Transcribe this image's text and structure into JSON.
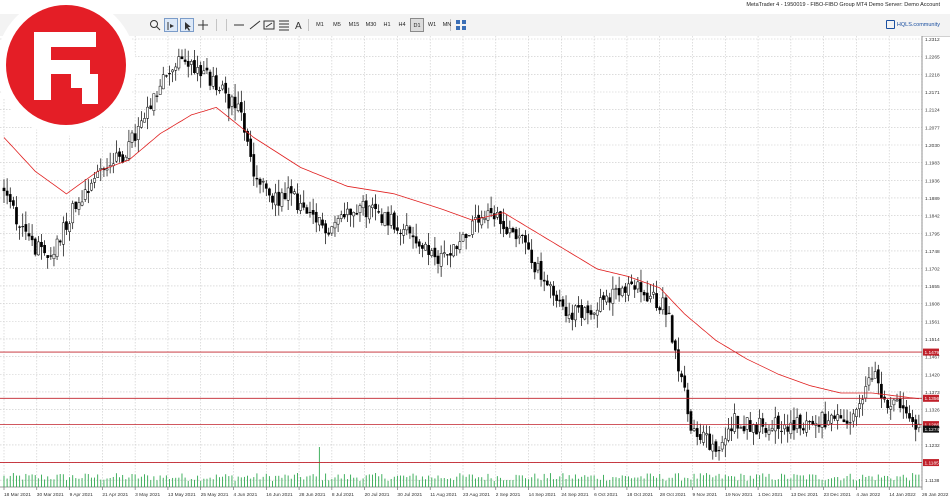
{
  "window": {
    "title": "MetaTrader 4 - 1950019 - FIBO-FIBO Group MT4 Demo Server: Demo Account"
  },
  "toolbar": {
    "timeframes": [
      "M1",
      "M5",
      "M15",
      "M30",
      "H1",
      "H4",
      "D1",
      "W1",
      "MN"
    ],
    "active_timeframe": "D1",
    "community_link": "HQLS.community"
  },
  "colors": {
    "grid": "#c8c8c8",
    "candle": "#000000",
    "moving_average": "#e02020",
    "level_line": "#c0202a",
    "level_label_bg": "#c0202a",
    "current_price_bg": "#111111",
    "logo_red": "#e41e26"
  },
  "chart_data": {
    "type": "candlestick",
    "price_axis_ticks": [
      "1.2312",
      "1.2265",
      "1.2218",
      "1.2171",
      "1.2124",
      "1.2077",
      "1.2030",
      "1.1983",
      "1.1936",
      "1.1889",
      "1.1842",
      "1.1795",
      "1.1748",
      "1.1702",
      "1.1655",
      "1.1608",
      "1.1561",
      "1.1514",
      "1.1467",
      "1.1420",
      "1.1373",
      "1.1326",
      "1.1279",
      "1.1232",
      "1.1185",
      "1.1138"
    ],
    "date_axis_ticks": [
      "18 Mar 2021",
      "30 Mar 2021",
      "9 Apr 2021",
      "21 Apr 2021",
      "3 May 2021",
      "13 May 2021",
      "25 May 2021",
      "4 Jun 2021",
      "16 Jun 2021",
      "28 Jun 2021",
      "8 Jul 2021",
      "20 Jul 2021",
      "30 Jul 2021",
      "11 Aug 2021",
      "23 Aug 2021",
      "2 Sep 2021",
      "14 Sep 2021",
      "24 Sep 2021",
      "6 Oct 2021",
      "18 Oct 2021",
      "28 Oct 2021",
      "9 Nov 2021",
      "19 Nov 2021",
      "1 Dec 2021",
      "13 Dec 2021",
      "23 Dec 2021",
      "4 Jan 2022",
      "14 Jan 2022",
      "26 Jan 2022"
    ],
    "ylim": [
      1.112,
      1.232
    ],
    "horizontal_levels": [
      {
        "value": 1.1479,
        "label": "1.1479"
      },
      {
        "value": 1.1356,
        "label": "1.1356"
      },
      {
        "value": 1.1286,
        "label": "1.1286"
      },
      {
        "value": 1.1185,
        "label": "1.1185"
      }
    ],
    "current_price": {
      "value": 1.1274,
      "label": "1.1274"
    },
    "close_anchors": [
      [
        0,
        1.192
      ],
      [
        6,
        1.18
      ],
      [
        14,
        1.172
      ],
      [
        22,
        1.186
      ],
      [
        30,
        1.196
      ],
      [
        38,
        1.2
      ],
      [
        46,
        1.211
      ],
      [
        52,
        1.222
      ],
      [
        58,
        1.226
      ],
      [
        64,
        1.222
      ],
      [
        70,
        1.217
      ],
      [
        76,
        1.211
      ],
      [
        80,
        1.195
      ],
      [
        86,
        1.188
      ],
      [
        92,
        1.19
      ],
      [
        98,
        1.183
      ],
      [
        104,
        1.181
      ],
      [
        112,
        1.187
      ],
      [
        120,
        1.185
      ],
      [
        126,
        1.182
      ],
      [
        132,
        1.178
      ],
      [
        138,
        1.172
      ],
      [
        144,
        1.176
      ],
      [
        150,
        1.181
      ],
      [
        156,
        1.184
      ],
      [
        160,
        1.182
      ],
      [
        166,
        1.178
      ],
      [
        172,
        1.168
      ],
      [
        178,
        1.16
      ],
      [
        184,
        1.158
      ],
      [
        190,
        1.161
      ],
      [
        196,
        1.163
      ],
      [
        202,
        1.165
      ],
      [
        208,
        1.162
      ],
      [
        212,
        1.16
      ],
      [
        216,
        1.145
      ],
      [
        220,
        1.128
      ],
      [
        224,
        1.126
      ],
      [
        228,
        1.12
      ],
      [
        234,
        1.13
      ],
      [
        240,
        1.128
      ],
      [
        246,
        1.129
      ],
      [
        252,
        1.128
      ],
      [
        258,
        1.129
      ],
      [
        264,
        1.13
      ],
      [
        270,
        1.128
      ],
      [
        274,
        1.133
      ],
      [
        278,
        1.142
      ],
      [
        282,
        1.136
      ],
      [
        286,
        1.133
      ],
      [
        290,
        1.13
      ],
      [
        293,
        1.1274
      ]
    ],
    "ma_anchors": [
      [
        0,
        1.205
      ],
      [
        10,
        1.196
      ],
      [
        20,
        1.19
      ],
      [
        30,
        1.196
      ],
      [
        40,
        1.199
      ],
      [
        50,
        1.206
      ],
      [
        60,
        1.211
      ],
      [
        68,
        1.213
      ],
      [
        80,
        1.205
      ],
      [
        95,
        1.197
      ],
      [
        110,
        1.192
      ],
      [
        125,
        1.19
      ],
      [
        140,
        1.186
      ],
      [
        150,
        1.183
      ],
      [
        160,
        1.185
      ],
      [
        170,
        1.18
      ],
      [
        180,
        1.175
      ],
      [
        190,
        1.17
      ],
      [
        200,
        1.168
      ],
      [
        210,
        1.165
      ],
      [
        218,
        1.158
      ],
      [
        228,
        1.151
      ],
      [
        238,
        1.146
      ],
      [
        248,
        1.142
      ],
      [
        258,
        1.139
      ],
      [
        268,
        1.137
      ],
      [
        278,
        1.137
      ],
      [
        288,
        1.136
      ],
      [
        293,
        1.1355
      ]
    ]
  }
}
